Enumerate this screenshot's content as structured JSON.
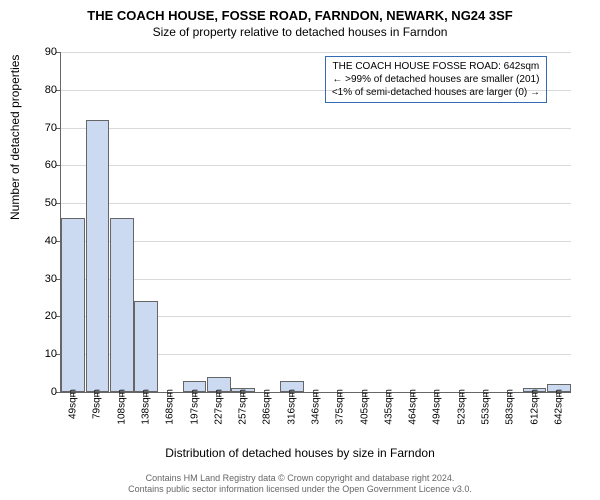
{
  "chart": {
    "type": "histogram",
    "title": "THE COACH HOUSE, FOSSE ROAD, FARNDON, NEWARK, NG24 3SF",
    "subtitle": "Size of property relative to detached houses in Farndon",
    "ylabel": "Number of detached properties",
    "xlabel": "Distribution of detached houses by size in Farndon",
    "ylim": [
      0,
      90
    ],
    "ytick_step": 10,
    "bar_fill": "#cbdaf0",
    "bar_border": "#666666",
    "grid_color": "#666666",
    "background": "#ffffff",
    "title_fontsize": 13,
    "subtitle_fontsize": 12,
    "label_fontsize": 12,
    "tick_fontsize": 10,
    "categories": [
      "49sqm",
      "79sqm",
      "108sqm",
      "138sqm",
      "168sqm",
      "197sqm",
      "227sqm",
      "257sqm",
      "286sqm",
      "316sqm",
      "346sqm",
      "375sqm",
      "405sqm",
      "435sqm",
      "464sqm",
      "494sqm",
      "523sqm",
      "553sqm",
      "583sqm",
      "612sqm",
      "642sqm"
    ],
    "values": [
      46,
      72,
      46,
      24,
      0,
      3,
      4,
      1,
      0,
      3,
      0,
      0,
      0,
      0,
      0,
      0,
      0,
      0,
      0,
      1,
      2
    ]
  },
  "annotation": {
    "line1": "THE COACH HOUSE FOSSE ROAD: 642sqm",
    "line2": "← >99% of detached houses are smaller (201)",
    "line3": "<1% of semi-detached houses are larger (0) →",
    "border_color": "#346bb2",
    "fontsize": 10
  },
  "footer": {
    "line1": "Contains HM Land Registry data © Crown copyright and database right 2024.",
    "line2": "Contains public sector information licensed under the Open Government Licence v3.0.",
    "color": "#666666",
    "fontsize": 9
  }
}
